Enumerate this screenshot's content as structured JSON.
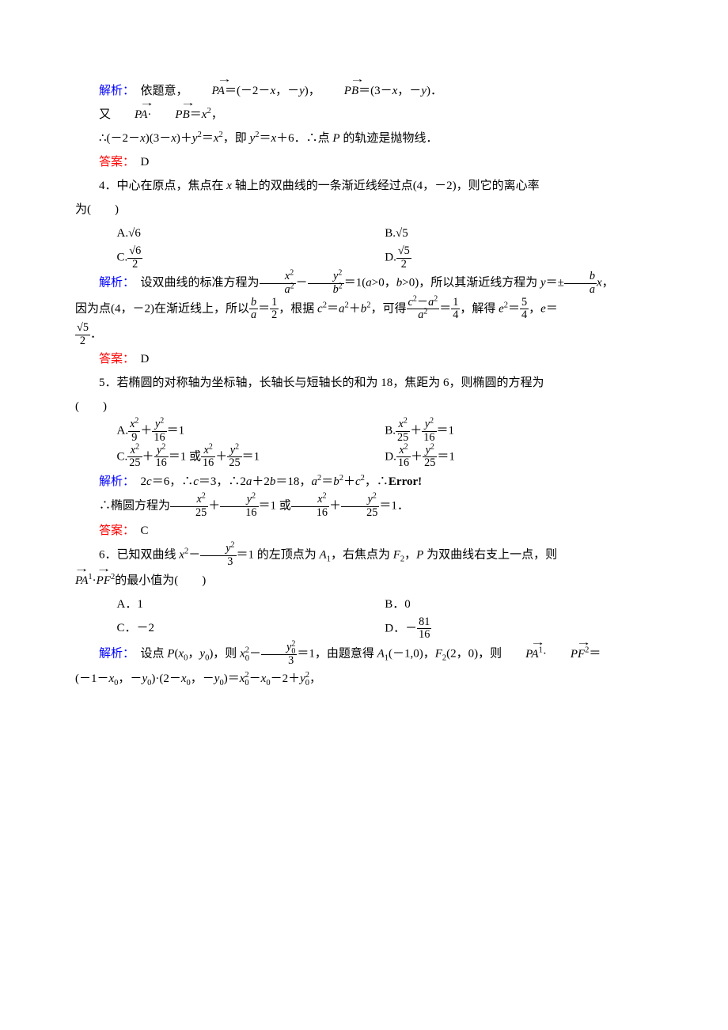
{
  "labels": {
    "analysis": "解析：",
    "answer": "答案："
  },
  "q3": {
    "line1_a": "　依题意，",
    "line1_b": "＝(－2－",
    "line1_c": "，－",
    "line1_d": ")，",
    "line1_e": "＝(3－",
    "line1_f": "，－",
    "line1_g": ")．",
    "line2_a": "又",
    "line2_b": "·",
    "line2_c": "＝",
    "line2_d": "，",
    "line3_a": "∴(－2－",
    "line3_b": ")(3－",
    "line3_c": ")＋",
    "line3_d": "＝",
    "line3_e": "，即 ",
    "line3_f": "＝",
    "line3_g": "＋6．∴点 ",
    "line3_h": " 的轨迹是抛物线．",
    "ans": "　D"
  },
  "q4": {
    "stem_a": "4．中心在原点，焦点在 ",
    "stem_b": " 轴上的双曲线的一条渐近线经过点(4，－2)，则它的离心率",
    "stem_c": "为(　　)",
    "A": "A.",
    "B": "B.",
    "C": "C.",
    "D": "D.",
    "sqrt6": "√6",
    "sqrt5": "√5",
    "two": "2",
    "sol_a": "　设双曲线的标准方程为",
    "sol_b": "＝1(",
    "sol_c": ">0，",
    "sol_d": ">0)，所以其渐近线方程为 ",
    "sol_e": "＝±",
    "sol_f": "，",
    "sol2_a": "因为点(4，－2)在渐近线上，所以",
    "sol2_b": "＝",
    "sol2_c": "，根据 ",
    "sol2_d": "＝",
    "sol2_e": "＋",
    "sol2_f": "，可得",
    "sol2_g": "＝",
    "sol2_h": "，解得 ",
    "sol2_i": "＝",
    "sol2_j": "，",
    "sol2_k": "＝",
    "sol3_a": "．",
    "ans": "　D"
  },
  "q5": {
    "stem_a": "5．若椭圆的对称轴为坐标轴，长轴长与短轴长的和为 18，焦距为 6，则椭圆的方程为",
    "stem_b": "(　　)",
    "A": "A.",
    "B": "B.",
    "C": "C.",
    "C_mid": "＝1 或",
    "D": "D.",
    "eq1": "＝1",
    "sol_a": "　2",
    "sol_b": "＝6，∴",
    "sol_c": "＝3，∴2",
    "sol_d": "＋2",
    "sol_e": "＝18，",
    "sol_f": "＝",
    "sol_g": "＋",
    "sol_h": "，∴",
    "sol_err": "Error!",
    "sol2_a": "∴椭圆方程为",
    "sol2_b": "＝1 或",
    "sol2_c": "＝1．",
    "ans": "　C"
  },
  "q6": {
    "stem_a": "6．已知双曲线 ",
    "stem_b": "－",
    "stem_c": "＝1 的左顶点为 ",
    "stem_d": "，右焦点为 ",
    "stem_e": "，",
    "stem_f": " 为双曲线右支上一点，则",
    "stem2_a": "·",
    "stem2_b": "的最小值为(　　)",
    "A": "A．1",
    "B": "B．0",
    "C": "C．－2",
    "D_a": "D．－",
    "D_num": "81",
    "D_den": "16",
    "sol_a": "　设点 ",
    "sol_b": "(",
    "sol_c": "，",
    "sol_d": ")，则 ",
    "sol_e": "－",
    "sol_f": "＝1，由题意得 ",
    "sol_g": "(－1,0)，",
    "sol_h": "(2，0)，则",
    "sol_i": "·",
    "sol_j": "＝",
    "sol2_a": "(－1－",
    "sol2_b": "，－",
    "sol2_c": ")·(2－",
    "sol2_d": "，－",
    "sol2_e": ")＝",
    "sol2_f": "－",
    "sol2_g": "－2＋",
    "sol2_h": "，"
  }
}
